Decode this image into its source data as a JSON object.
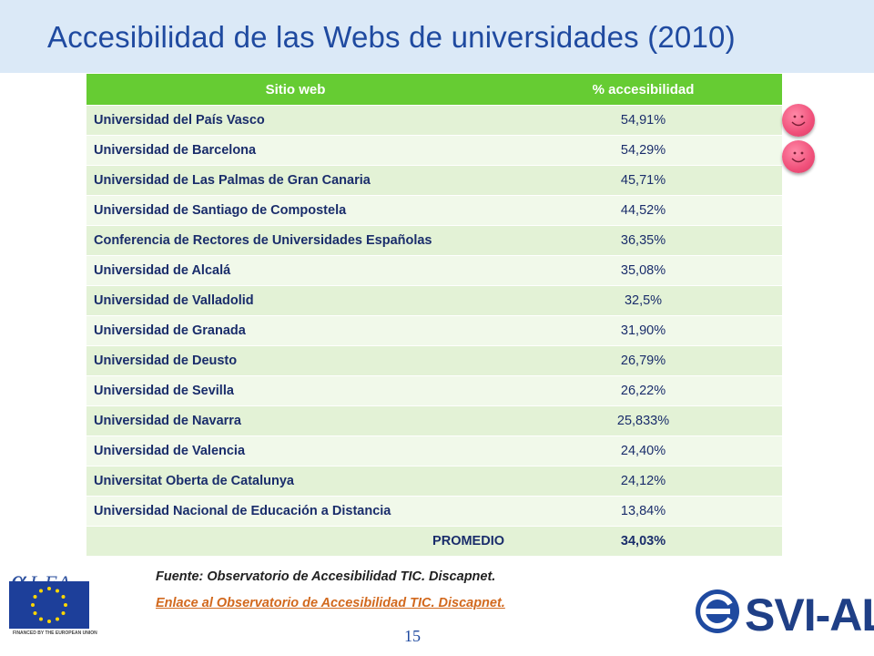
{
  "title": "Accesibilidad de las Webs de universidades (2010)",
  "table": {
    "headers": [
      "Sitio web",
      "% accesibilidad"
    ],
    "rows": [
      {
        "name": "Universidad del País Vasco",
        "pct": "54,91%"
      },
      {
        "name": "Universidad de Barcelona",
        "pct": "54,29%"
      },
      {
        "name": "Universidad de Las Palmas de Gran Canaria",
        "pct": "45,71%"
      },
      {
        "name": "Universidad de Santiago de Compostela",
        "pct": "44,52%"
      },
      {
        "name": "Conferencia de Rectores de Universidades Españolas",
        "pct": "36,35%"
      },
      {
        "name": "Universidad de Alcalá",
        "pct": "35,08%"
      },
      {
        "name": "Universidad de Valladolid",
        "pct": "32,5%"
      },
      {
        "name": "Universidad de Granada",
        "pct": "31,90%"
      },
      {
        "name": "Universidad de Deusto",
        "pct": "26,79%"
      },
      {
        "name": "Universidad de Sevilla",
        "pct": "26,22%"
      },
      {
        "name": "Universidad de Navarra",
        "pct": "25,833%"
      },
      {
        "name": "Universidad de Valencia",
        "pct": "24,40%"
      },
      {
        "name": "Universitat Oberta de Catalunya",
        "pct": "24,12%"
      },
      {
        "name": "Universidad Nacional de Educación a Distancia",
        "pct": "13,84%"
      }
    ],
    "average_label": "PROMEDIO",
    "average_value": "34,03%"
  },
  "source_text": "Fuente: Observatorio de Accesibilidad TIC. Discapnet.",
  "link_text": "Enlace al Observatorio de Accesibilidad TIC. Discapnet.",
  "page_number": "15",
  "logos": {
    "alfa": "ALFA",
    "eu_caption": "FINANCED BY THE EUROPEAN UNION",
    "svial": "SVI-AL"
  },
  "icons": [
    "smiley-icon",
    "eu-flag-icon",
    "svial-e-icon"
  ],
  "colors": {
    "title": "#1f4aa0",
    "header_bg": "#66cc33",
    "row_text": "#1a2d6b",
    "link": "#d2691e",
    "smiley": "#f0507a"
  }
}
